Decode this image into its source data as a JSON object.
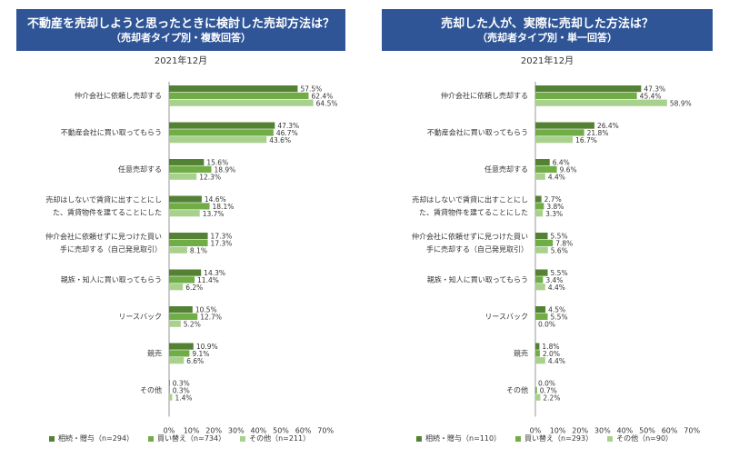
{
  "chart_data": [
    {
      "type": "bar",
      "orientation": "horizontal",
      "title": "不動産を売却しようと思ったときに検討した売却方法は？",
      "subtitle": "（売却者タイプ別・複数回答）",
      "date": "2021年12月",
      "xlim": [
        0,
        70
      ],
      "xticks": [
        "0%",
        "10%",
        "20%",
        "30%",
        "40%",
        "50%",
        "60%",
        "70%"
      ],
      "categories": [
        [
          "仲介会社に依頼し売却する"
        ],
        [
          "不動産会社に買い取ってもらう"
        ],
        [
          "任意売却する"
        ],
        [
          "売却はしないで賃貸に出すことにし",
          "た、賃貸物件を建てることにした"
        ],
        [
          "仲介会社に依頼せずに見つけた買い",
          "手に売却する（自己発見取引）"
        ],
        [
          "親族・知人に買い取ってもらう"
        ],
        [
          "リースバック"
        ],
        [
          "競売"
        ],
        [
          "その他"
        ]
      ],
      "series": [
        {
          "name": "相続・贈与（n=294）",
          "color": "#548235",
          "values": [
            57.5,
            47.3,
            15.6,
            14.6,
            17.3,
            14.3,
            10.5,
            10.9,
            0.3
          ],
          "labels": [
            "57.5%",
            "47.3%",
            "15.6%",
            "14.6%",
            "17.3%",
            "14.3%",
            "10.5%",
            "10.9%",
            "0.3%"
          ]
        },
        {
          "name": "買い替え（n=734）",
          "color": "#70ad47",
          "values": [
            62.4,
            46.7,
            18.9,
            18.1,
            17.3,
            11.4,
            12.7,
            9.1,
            0.3
          ],
          "labels": [
            "62.4%",
            "46.7%",
            "18.9%",
            "18.1%",
            "17.3%",
            "11.4%",
            "12.7%",
            "9.1%",
            "0.3%"
          ]
        },
        {
          "name": "その他（n=211）",
          "color": "#a9d18e",
          "values": [
            64.5,
            43.6,
            12.3,
            13.7,
            8.1,
            6.2,
            5.2,
            6.6,
            1.4
          ],
          "labels": [
            "64.5%",
            "43.6%",
            "12.3%",
            "13.7%",
            "8.1%",
            "6.2%",
            "5.2%",
            "6.6%",
            "1.4%"
          ]
        }
      ]
    },
    {
      "type": "bar",
      "orientation": "horizontal",
      "title": "売却した人が、実際に売却した方法は？",
      "subtitle": "（売却者タイプ別・単一回答）",
      "date": "2021年12月",
      "xlim": [
        0,
        70
      ],
      "xticks": [
        "0%",
        "10%",
        "20%",
        "30%",
        "40%",
        "50%",
        "60%",
        "70%"
      ],
      "categories": [
        [
          "仲介会社に依頼し売却する"
        ],
        [
          "不動産会社に買い取ってもらう"
        ],
        [
          "任意売却する"
        ],
        [
          "売却はしないで賃貸に出すことにし",
          "た、賃貸物件を建てることにした"
        ],
        [
          "仲介会社に依頼せずに見つけた買い",
          "手に売却する（自己発見取引）"
        ],
        [
          "親族・知人に買い取ってもらう"
        ],
        [
          "リースバック"
        ],
        [
          "競売"
        ],
        [
          "その他"
        ]
      ],
      "series": [
        {
          "name": "相続・贈与（n=110）",
          "color": "#548235",
          "values": [
            47.3,
            26.4,
            6.4,
            2.7,
            5.5,
            5.5,
            4.5,
            1.8,
            0.0
          ],
          "labels": [
            "47.3%",
            "26.4%",
            "6.4%",
            "2.7%",
            "5.5%",
            "5.5%",
            "4.5%",
            "1.8%",
            "0.0%"
          ]
        },
        {
          "name": "買い替え（n=293）",
          "color": "#70ad47",
          "values": [
            45.4,
            21.8,
            9.6,
            3.8,
            7.8,
            3.4,
            5.5,
            2.0,
            0.7
          ],
          "labels": [
            "45.4%",
            "21.8%",
            "9.6%",
            "3.8%",
            "7.8%",
            "3.4%",
            "5.5%",
            "2.0%",
            "0.7%"
          ]
        },
        {
          "name": "その他（n=90）",
          "color": "#a9d18e",
          "values": [
            58.9,
            16.7,
            4.4,
            3.3,
            5.6,
            4.4,
            0.0,
            4.4,
            2.2
          ],
          "labels": [
            "58.9%",
            "16.7%",
            "4.4%",
            "3.3%",
            "5.6%",
            "4.4%",
            "0.0%",
            "4.4%",
            "2.2%"
          ]
        }
      ]
    }
  ]
}
